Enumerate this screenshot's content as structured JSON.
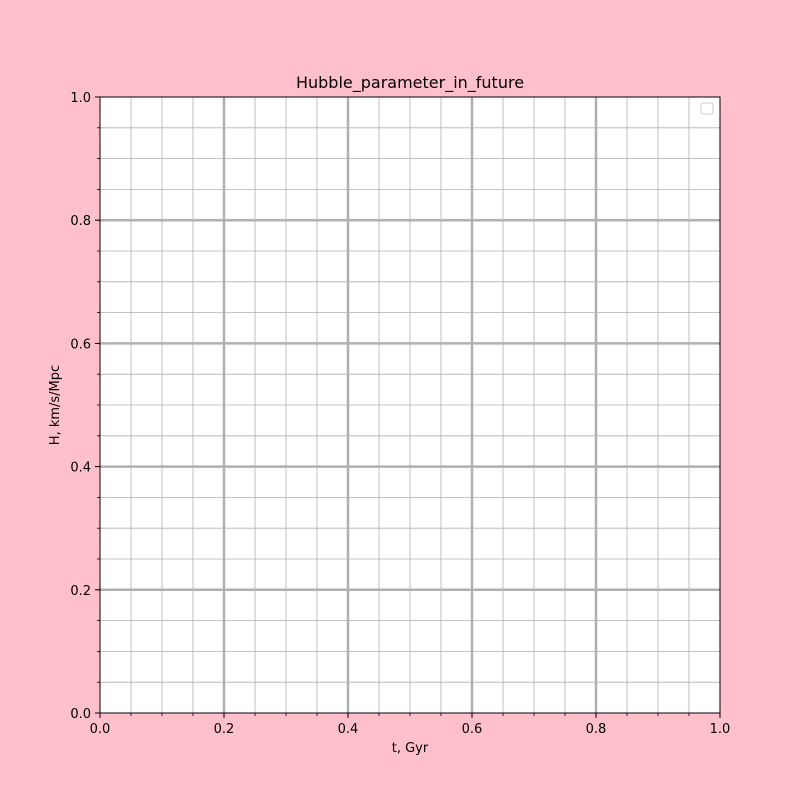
{
  "colors": {
    "background": "#ffc0cb",
    "plot_background": "#ffffff",
    "major_grid": "#b0b0b0",
    "minor_grid": "#b0b0b0",
    "axes": "#000000"
  },
  "chart_data": {
    "type": "line",
    "title": "Hubble_parameter_in_future",
    "xlabel": "t, Gyr",
    "ylabel": "H, km/s/Mpc",
    "xlim": [
      0.0,
      1.0
    ],
    "ylim": [
      0.0,
      1.0
    ],
    "x_ticks": [
      "0.0",
      "0.2",
      "0.4",
      "0.6",
      "0.8",
      "1.0"
    ],
    "y_ticks": [
      "0.0",
      "0.2",
      "0.4",
      "0.6",
      "0.8",
      "1.0"
    ],
    "x_tick_values": [
      0.0,
      0.2,
      0.4,
      0.6,
      0.8,
      1.0
    ],
    "y_tick_values": [
      0.0,
      0.2,
      0.4,
      0.6,
      0.8,
      1.0
    ],
    "minor_step_x": 0.05,
    "minor_step_y": 0.05,
    "grid": "major and minor",
    "legend": "top-right (empty)",
    "series": []
  }
}
